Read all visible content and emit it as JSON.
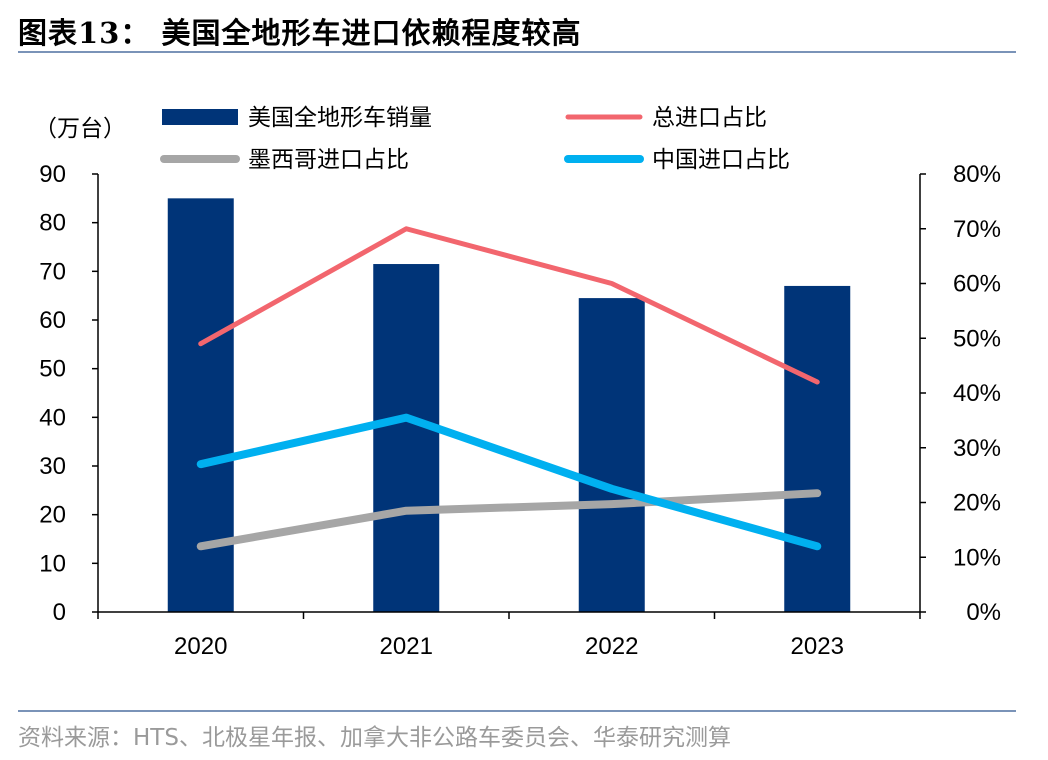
{
  "header": {
    "title": "图表13：  美国全地形车进口依赖程度较高"
  },
  "footer": {
    "source": "资料来源：HTS、北极星年报、加拿大非公路车委员会、华泰研究测算"
  },
  "chart_data": {
    "type": "bar",
    "categories": [
      "2020",
      "2021",
      "2022",
      "2023"
    ],
    "y_left": {
      "unit_label": "（万台）",
      "ylim": [
        0,
        90
      ],
      "ticks": [
        "0",
        "10",
        "20",
        "30",
        "40",
        "50",
        "60",
        "70",
        "80",
        "90"
      ]
    },
    "y_right": {
      "ylim": [
        0,
        0.8
      ],
      "ticks": [
        "0%",
        "10%",
        "20%",
        "30%",
        "40%",
        "50%",
        "60%",
        "70%",
        "80%"
      ]
    },
    "bar_series": {
      "name": "美国全地形车销量",
      "color": "#003478",
      "values": [
        85,
        71.5,
        64.5,
        67
      ]
    },
    "line_series": [
      {
        "name": "总进口占比",
        "color": "#f2666e",
        "values": [
          0.49,
          0.7,
          0.6,
          0.42
        ]
      },
      {
        "name": "墨西哥进口占比",
        "color": "#a6a6a6",
        "values": [
          0.12,
          0.185,
          0.197,
          0.217
        ]
      },
      {
        "name": "中国进口占比",
        "color": "#00b0f0",
        "values": [
          0.27,
          0.355,
          0.225,
          0.12
        ]
      }
    ],
    "legend": [
      "美国全地形车销量",
      "总进口占比",
      "墨西哥进口占比",
      "中国进口占比"
    ],
    "grid": false,
    "legend_position": "top"
  }
}
